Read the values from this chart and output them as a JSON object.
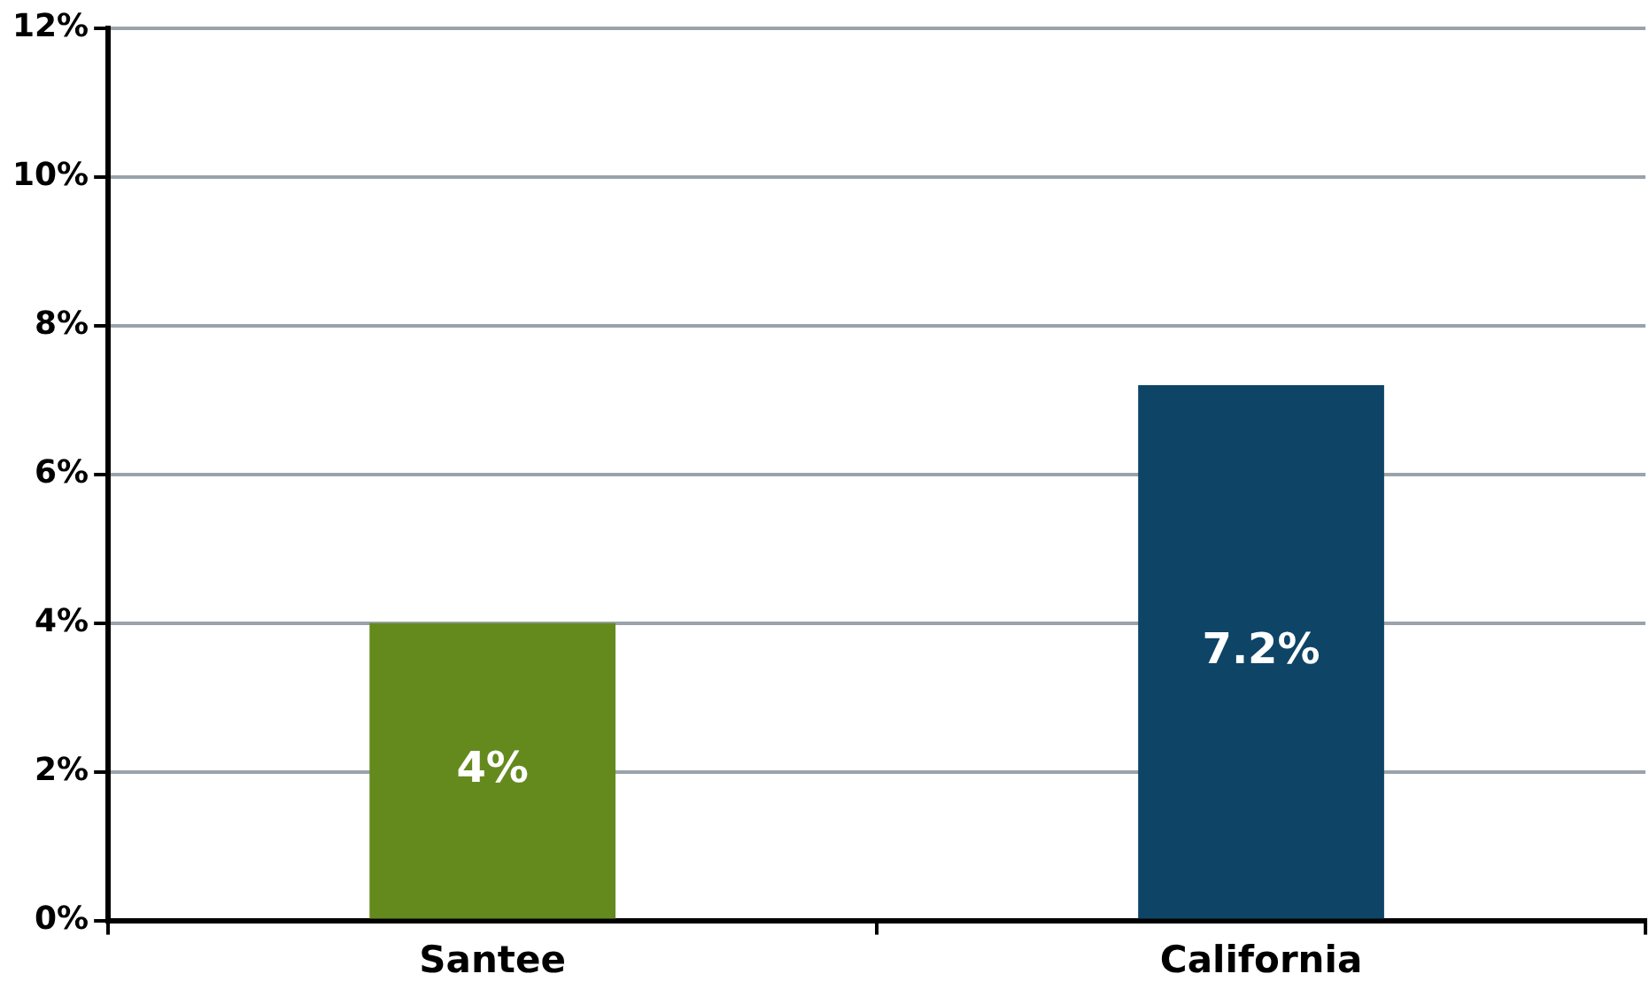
{
  "chart_data": {
    "type": "bar",
    "categories": [
      "Santee",
      "California"
    ],
    "values": [
      4,
      7.2
    ],
    "colors": [
      "#648a1e",
      "#0e4466"
    ],
    "value_labels": [
      "4%",
      "7.2%"
    ],
    "ylim": [
      0,
      12
    ],
    "yticks": [
      {
        "value": 0,
        "label": "0%"
      },
      {
        "value": 2,
        "label": "2%"
      },
      {
        "value": 4,
        "label": "4%"
      },
      {
        "value": 6,
        "label": "6%"
      },
      {
        "value": 8,
        "label": "8%"
      },
      {
        "value": 10,
        "label": "10%"
      },
      {
        "value": 12,
        "label": "12%"
      }
    ],
    "grid": "y",
    "legend": false
  }
}
